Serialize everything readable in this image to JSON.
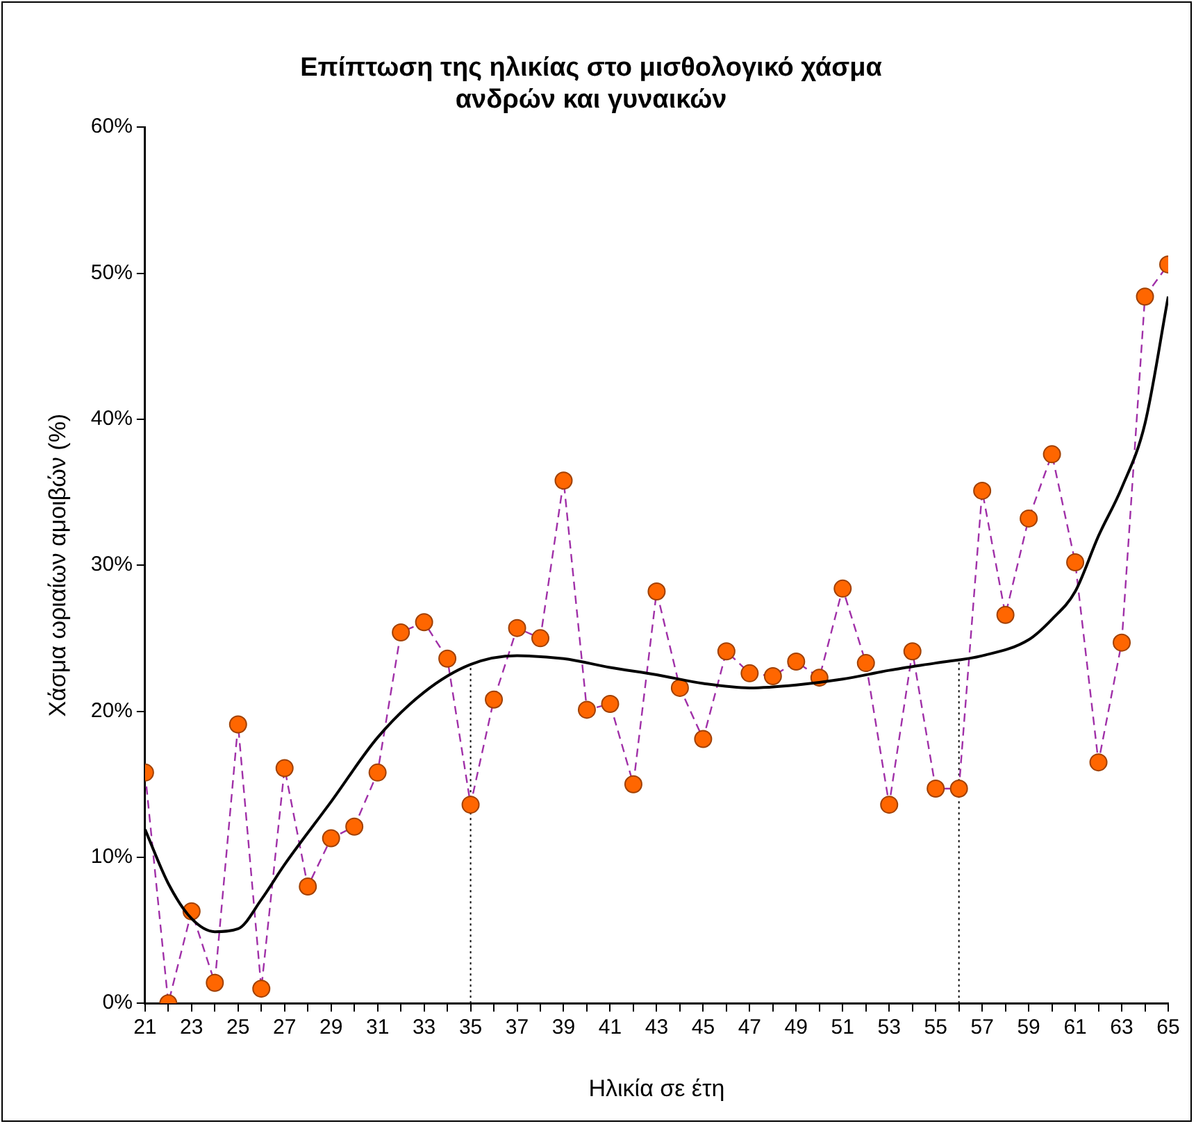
{
  "chart_data": {
    "type": "line",
    "title": "Επίπτωση της ηλικίας στο μισθολογικό χάσμα\nανδρών και γυναικών",
    "xlabel": "Ηλικία σε έτη",
    "ylabel": "Χάσμα ωριαίων αμοιβών (%)",
    "x": [
      21,
      22,
      23,
      24,
      25,
      26,
      27,
      28,
      29,
      30,
      31,
      32,
      33,
      34,
      35,
      36,
      37,
      38,
      39,
      40,
      41,
      42,
      43,
      44,
      45,
      46,
      47,
      48,
      49,
      50,
      51,
      52,
      53,
      54,
      55,
      56,
      57,
      58,
      59,
      60,
      61,
      62,
      63,
      64,
      65
    ],
    "series": [
      {
        "color": "#a030a8",
        "marker": "none",
        "line_style": "dashed",
        "values": [
          15.8,
          0.0,
          6.3,
          1.4,
          19.1,
          1.0,
          16.1,
          8.0,
          11.3,
          12.1,
          15.8,
          25.4,
          26.1,
          23.6,
          13.6,
          20.8,
          25.7,
          25.0,
          35.8,
          20.1,
          20.5,
          15.0,
          28.2,
          21.6,
          18.1,
          24.1,
          22.6,
          22.4,
          23.4,
          22.3,
          28.4,
          23.3,
          13.6,
          24.1,
          14.7,
          14.7,
          35.1,
          26.6,
          33.2,
          37.6,
          30.2,
          16.5,
          24.7,
          48.4,
          50.6
        ]
      },
      {
        "type": "scatter",
        "color": "#ff6600",
        "marker": "circle",
        "values": [
          15.8,
          0.0,
          6.3,
          1.4,
          19.1,
          1.0,
          16.1,
          8.0,
          11.3,
          12.1,
          15.8,
          25.4,
          26.1,
          23.6,
          13.6,
          20.8,
          25.7,
          25.0,
          35.8,
          20.1,
          20.5,
          15.0,
          28.2,
          21.6,
          18.1,
          24.1,
          22.6,
          22.4,
          23.4,
          22.3,
          28.4,
          23.3,
          13.6,
          24.1,
          14.7,
          14.7,
          35.1,
          26.6,
          33.2,
          37.6,
          30.2,
          16.5,
          24.7,
          48.4,
          50.6
        ]
      },
      {
        "color": "#000000",
        "marker": "none",
        "line_style": "solid",
        "x": [
          21,
          22,
          23,
          24,
          25,
          26,
          27,
          29,
          31,
          33,
          35,
          37,
          39,
          41,
          43,
          45,
          47,
          49,
          51,
          53,
          55,
          57,
          59,
          60,
          61,
          62,
          63,
          64,
          65
        ],
        "values": [
          11.9,
          8.2,
          5.8,
          4.9,
          5.1,
          7.1,
          9.5,
          13.8,
          18.2,
          21.3,
          23.2,
          23.8,
          23.6,
          23.0,
          22.5,
          21.9,
          21.6,
          21.8,
          22.2,
          22.8,
          23.3,
          23.8,
          24.9,
          26.3,
          28.2,
          32.0,
          35.3,
          39.7,
          48.4
        ]
      }
    ],
    "xlim": [
      21,
      65
    ],
    "xticks": [
      21,
      {
        "value": 22,
        "label": null
      },
      23,
      {
        "value": 24,
        "label": null
      },
      25,
      {
        "value": 26,
        "label": null
      },
      27,
      {
        "value": 28,
        "label": null
      },
      29,
      {
        "value": 30,
        "label": null
      },
      31,
      {
        "value": 32,
        "label": null
      },
      33,
      {
        "value": 34,
        "label": null
      },
      35,
      {
        "value": 36,
        "label": null
      },
      37,
      {
        "value": 38,
        "label": null
      },
      39,
      {
        "value": 40,
        "label": null
      },
      41,
      {
        "value": 42,
        "label": null
      },
      43,
      {
        "value": 44,
        "label": null
      },
      45,
      {
        "value": 46,
        "label": null
      },
      47,
      {
        "value": 48,
        "label": null
      },
      49,
      {
        "value": 50,
        "label": null
      },
      51,
      {
        "value": 52,
        "label": null
      },
      53,
      {
        "value": 54,
        "label": null
      },
      55,
      {
        "value": 56,
        "label": null
      },
      57,
      {
        "value": 58,
        "label": null
      },
      59,
      {
        "value": 60,
        "label": null
      },
      61,
      {
        "value": 62,
        "label": null
      },
      63,
      {
        "value": 64,
        "label": null
      },
      65
    ],
    "ylim": [
      0,
      60
    ],
    "yticks": [
      {
        "value": 0,
        "label": "0%"
      },
      {
        "value": 10,
        "label": "10%"
      },
      {
        "value": 20,
        "label": "20%"
      },
      {
        "value": 30,
        "label": "30%"
      },
      {
        "value": 40,
        "label": "40%"
      },
      {
        "value": 50,
        "label": "50%"
      },
      {
        "value": 60,
        "label": "60%"
      }
    ],
    "ref_lines": [
      {
        "axis": "x",
        "value": 35,
        "line_style": "dotted",
        "color": "#000000"
      },
      {
        "axis": "x",
        "value": 56,
        "line_style": "dotted",
        "color": "#000000"
      }
    ],
    "grid": false,
    "legend": false
  }
}
